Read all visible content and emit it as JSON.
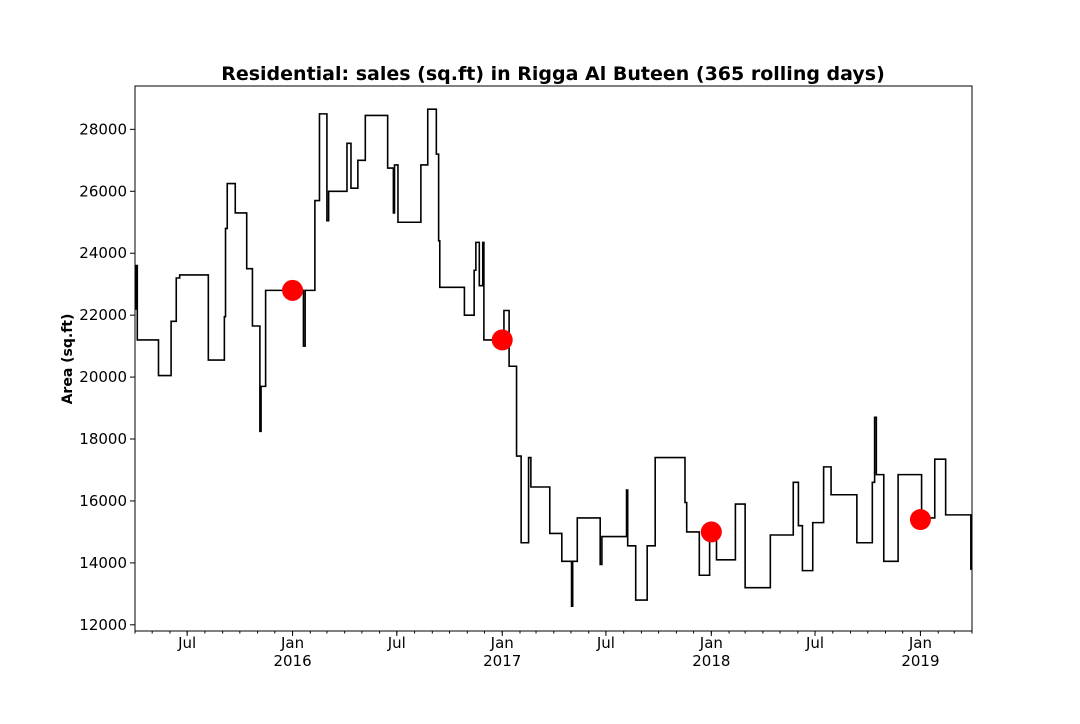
{
  "chart_data": {
    "type": "line",
    "title": "Residential: sales (sq.ft) in Rigga Al Buteen (365 rolling days)",
    "xlabel": "",
    "ylabel": "Area (sq.ft)",
    "xlim": [
      "2015-04-01",
      "2019-04-01"
    ],
    "ylim": [
      11800,
      29400
    ],
    "grid": false,
    "legend": "none",
    "colors": {
      "line": "#000000",
      "marker": "#ff0000"
    },
    "y_ticks": [
      {
        "value": 12000,
        "label": "12000"
      },
      {
        "value": 14000,
        "label": "14000"
      },
      {
        "value": 16000,
        "label": "16000"
      },
      {
        "value": 18000,
        "label": "18000"
      },
      {
        "value": 20000,
        "label": "20000"
      },
      {
        "value": 22000,
        "label": "22000"
      },
      {
        "value": 24000,
        "label": "24000"
      },
      {
        "value": 26000,
        "label": "26000"
      },
      {
        "value": 28000,
        "label": "28000"
      }
    ],
    "x_ticks": [
      {
        "date": "2015-07-01",
        "label": "Jul",
        "sublabel": ""
      },
      {
        "date": "2016-01-01",
        "label": "Jan",
        "sublabel": "2016"
      },
      {
        "date": "2016-07-01",
        "label": "Jul",
        "sublabel": ""
      },
      {
        "date": "2017-01-01",
        "label": "Jan",
        "sublabel": "2017"
      },
      {
        "date": "2017-07-01",
        "label": "Jul",
        "sublabel": ""
      },
      {
        "date": "2018-01-01",
        "label": "Jan",
        "sublabel": "2018"
      },
      {
        "date": "2018-07-01",
        "label": "Jul",
        "sublabel": ""
      },
      {
        "date": "2019-01-01",
        "label": "Jan",
        "sublabel": "2019"
      }
    ],
    "series": [
      {
        "style": "step",
        "points": [
          [
            "2015-04-01",
            22200
          ],
          [
            "2015-04-03",
            23600
          ],
          [
            "2015-04-05",
            21200
          ],
          [
            "2015-05-12",
            20050
          ],
          [
            "2015-06-03",
            21800
          ],
          [
            "2015-06-12",
            23200
          ],
          [
            "2015-06-18",
            23300
          ],
          [
            "2015-08-07",
            20550
          ],
          [
            "2015-09-04",
            21950
          ],
          [
            "2015-09-06",
            24800
          ],
          [
            "2015-09-09",
            26250
          ],
          [
            "2015-09-23",
            25300
          ],
          [
            "2015-10-13",
            23500
          ],
          [
            "2015-10-23",
            21650
          ],
          [
            "2015-11-05",
            18250
          ],
          [
            "2015-11-07",
            19700
          ],
          [
            "2015-11-15",
            22800
          ],
          [
            "2016-01-20",
            21000
          ],
          [
            "2016-01-23",
            22800
          ],
          [
            "2016-02-09",
            25700
          ],
          [
            "2016-02-17",
            28500
          ],
          [
            "2016-03-01",
            25050
          ],
          [
            "2016-03-04",
            26000
          ],
          [
            "2016-04-05",
            27550
          ],
          [
            "2016-04-12",
            26100
          ],
          [
            "2016-04-24",
            27000
          ],
          [
            "2016-05-07",
            28450
          ],
          [
            "2016-06-15",
            26750
          ],
          [
            "2016-06-25",
            25300
          ],
          [
            "2016-06-27",
            26850
          ],
          [
            "2016-07-03",
            25000
          ],
          [
            "2016-08-12",
            26850
          ],
          [
            "2016-08-24",
            28650
          ],
          [
            "2016-09-08",
            27200
          ],
          [
            "2016-09-12",
            24400
          ],
          [
            "2016-09-14",
            22900
          ],
          [
            "2016-10-27",
            22000
          ],
          [
            "2016-11-13",
            23450
          ],
          [
            "2016-11-16",
            24350
          ],
          [
            "2016-11-22",
            22950
          ],
          [
            "2016-11-28",
            24350
          ],
          [
            "2016-11-30",
            21200
          ],
          [
            "2017-01-04",
            22150
          ],
          [
            "2017-01-13",
            20350
          ],
          [
            "2017-01-26",
            17450
          ],
          [
            "2017-02-03",
            14650
          ],
          [
            "2017-02-16",
            17400
          ],
          [
            "2017-02-20",
            16450
          ],
          [
            "2017-03-25",
            14950
          ],
          [
            "2017-04-15",
            14050
          ],
          [
            "2017-05-02",
            12600
          ],
          [
            "2017-05-04",
            14050
          ],
          [
            "2017-05-12",
            15450
          ],
          [
            "2017-06-21",
            13950
          ],
          [
            "2017-06-24",
            14850
          ],
          [
            "2017-08-06",
            16350
          ],
          [
            "2017-08-08",
            14550
          ],
          [
            "2017-08-22",
            12800
          ],
          [
            "2017-09-11",
            14550
          ],
          [
            "2017-09-25",
            17400
          ],
          [
            "2017-11-16",
            15950
          ],
          [
            "2017-11-19",
            15000
          ],
          [
            "2017-12-11",
            13600
          ],
          [
            "2017-12-29",
            15050
          ],
          [
            "2018-01-10",
            14100
          ],
          [
            "2018-02-12",
            15900
          ],
          [
            "2018-03-01",
            13200
          ],
          [
            "2018-04-14",
            14900
          ],
          [
            "2018-05-24",
            16600
          ],
          [
            "2018-06-02",
            15200
          ],
          [
            "2018-06-09",
            13750
          ],
          [
            "2018-06-27",
            15300
          ],
          [
            "2018-07-16",
            17100
          ],
          [
            "2018-07-29",
            16200
          ],
          [
            "2018-09-12",
            14650
          ],
          [
            "2018-10-09",
            16600
          ],
          [
            "2018-10-13",
            18700
          ],
          [
            "2018-10-16",
            16850
          ],
          [
            "2018-10-29",
            14050
          ],
          [
            "2018-11-23",
            16850
          ],
          [
            "2019-01-03",
            15450
          ],
          [
            "2019-01-26",
            17350
          ],
          [
            "2019-02-14",
            15550
          ],
          [
            "2019-03-30",
            13800
          ],
          [
            "2019-04-01",
            13800
          ]
        ]
      }
    ],
    "markers": [
      {
        "x": "2016-01-01",
        "y": 22800
      },
      {
        "x": "2017-01-01",
        "y": 21200
      },
      {
        "x": "2018-01-01",
        "y": 15000
      },
      {
        "x": "2019-01-01",
        "y": 15400
      }
    ]
  }
}
